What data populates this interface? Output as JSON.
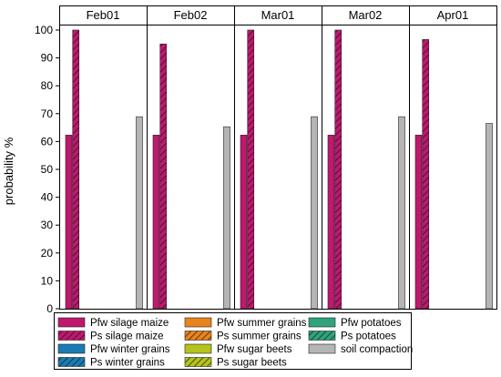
{
  "chart_data": {
    "type": "bar",
    "facets": [
      "Feb01",
      "Feb02",
      "Mar01",
      "Mar02",
      "Apr01"
    ],
    "ylabel": "probability %",
    "ylim": [
      0,
      100
    ],
    "yticks": [
      0,
      10,
      20,
      30,
      40,
      50,
      60,
      70,
      80,
      90,
      100
    ],
    "grid": false,
    "legend_position": "bottom",
    "series": [
      {
        "name": "Pfw silage maize",
        "color": "#c0176f",
        "pattern": "solid",
        "values": [
          62.3,
          62.3,
          62.3,
          62.3,
          62.3
        ]
      },
      {
        "name": "Ps silage maize",
        "color": "#c0176f",
        "pattern": "hatched",
        "values": [
          100,
          95,
          100,
          100,
          96.6
        ]
      },
      {
        "name": "Pfw winter grains",
        "color": "#1a7bb5",
        "pattern": "solid",
        "values": [
          0,
          0,
          0,
          0,
          0
        ]
      },
      {
        "name": "Ps winter grains",
        "color": "#1a7bb5",
        "pattern": "hatched",
        "values": [
          0,
          0,
          0,
          0,
          0
        ]
      },
      {
        "name": "Pfw summer grains",
        "color": "#e8831e",
        "pattern": "solid",
        "values": [
          0,
          0,
          0,
          0,
          0
        ]
      },
      {
        "name": "Ps summer grains",
        "color": "#e8831e",
        "pattern": "hatched",
        "values": [
          0,
          0,
          0,
          0,
          0
        ]
      },
      {
        "name": "Pfw sugar beets",
        "color": "#b5c21a",
        "pattern": "solid",
        "values": [
          0,
          0,
          0,
          0,
          0
        ]
      },
      {
        "name": "Ps sugar beets",
        "color": "#b5c21a",
        "pattern": "hatched",
        "values": [
          0,
          0,
          0,
          0,
          0
        ]
      },
      {
        "name": "Pfw potatoes",
        "color": "#2fa37d",
        "pattern": "solid",
        "values": [
          0,
          0,
          0,
          0,
          0
        ]
      },
      {
        "name": "Ps potatoes",
        "color": "#2fa37d",
        "pattern": "hatched",
        "values": [
          0,
          0,
          0,
          0,
          0
        ]
      },
      {
        "name": "soil compaction",
        "color": "#b5b5b5",
        "pattern": "solid",
        "values": [
          68.9,
          65.3,
          68.9,
          68.9,
          66.5
        ]
      }
    ],
    "legend_order": [
      "Pfw silage maize",
      "Pfw summer grains",
      "Pfw potatoes",
      "Ps silage maize",
      "Ps summer grains",
      "Ps potatoes",
      "Pfw winter grains",
      "Pfw sugar beets",
      "soil compaction",
      "Ps winter grains",
      "Ps sugar beets"
    ]
  }
}
